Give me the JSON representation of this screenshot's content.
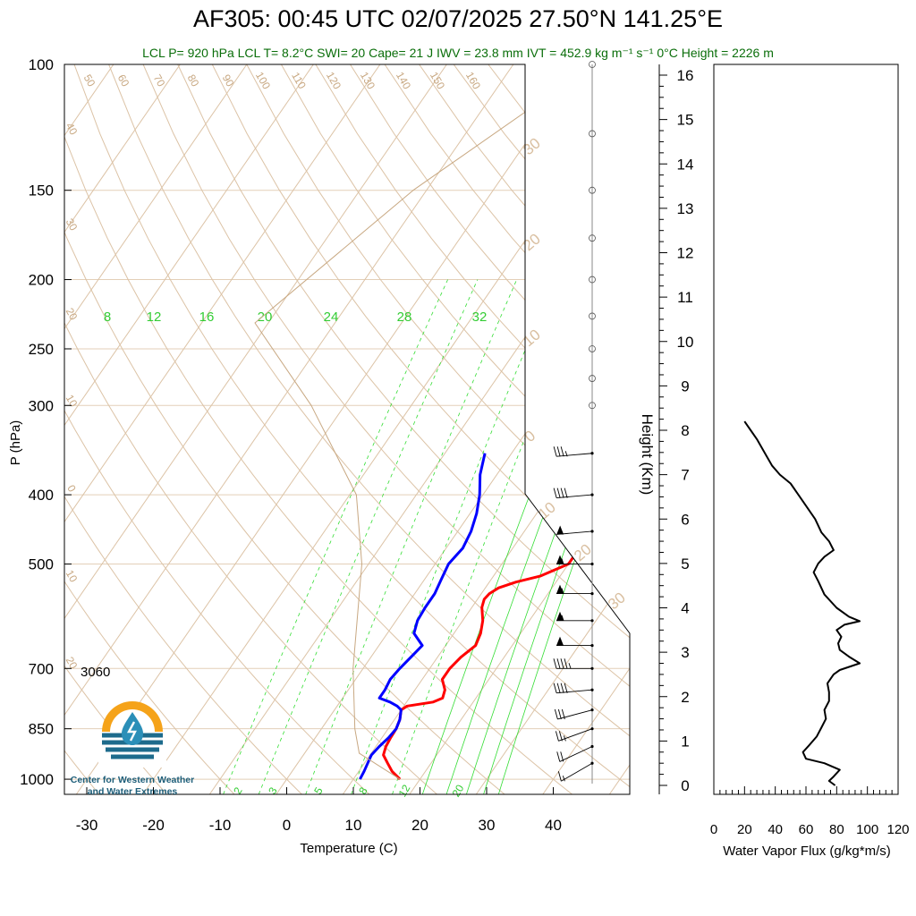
{
  "header": {
    "title": "AF305: 00:45 UTC 02/07/2025  27.50°N 141.25°E",
    "subtitle": "LCL P= 920 hPa  LCL T= 8.2°C  SWI= 20  Cape= 21 J  IWV = 23.8 mm  IVT = 452.9 kg m⁻¹ s⁻¹  0°C Height = 2226 m"
  },
  "annotation_3060": "3060",
  "logo": {
    "line1": "Center for Western Weather",
    "line2": "and Water Extremes"
  },
  "colors": {
    "temperature": "#ff0000",
    "dewpoint": "#0000ff",
    "parcel": "#c8a882",
    "mixing_ratio": "#33dd33",
    "dry_adiabat": "#c8a882",
    "subtitle": "#0a6e0a"
  },
  "chart_data": [
    {
      "type": "line",
      "chart": "skew-T log-P sounding",
      "xlabel": "Temperature (C)",
      "ylabel": "P (hPa)",
      "xticks": [
        -30,
        -20,
        -10,
        0,
        10,
        20,
        30,
        40
      ],
      "yticks": [
        100,
        150,
        200,
        250,
        300,
        400,
        500,
        700,
        850,
        1000
      ],
      "xlim": [
        -34,
        48
      ],
      "ylim": [
        1050,
        100
      ],
      "mixing_ratio_labels": [
        "8",
        "12",
        "16",
        "20",
        "24",
        "28",
        "32"
      ],
      "mixing_ratio_bottom_labels": [
        "2",
        "3",
        "5",
        "8",
        "12",
        "20"
      ],
      "dry_adiabat_top_labels": [
        "50",
        "60",
        "70",
        "80",
        "90",
        "100",
        "110",
        "120",
        "130",
        "140",
        "150",
        "160"
      ],
      "dry_adiabat_left_labels": [
        "40",
        "30",
        "20",
        "10",
        "0",
        "10",
        "20"
      ],
      "skew_labels": [
        "30",
        "20",
        "10",
        "0",
        "10",
        "20",
        "30"
      ],
      "series": [
        {
          "name": "Temperature",
          "pressure": [
            1000,
            975,
            950,
            925,
            900,
            875,
            850,
            825,
            800,
            790,
            780,
            770,
            750,
            725,
            700,
            675,
            650,
            625,
            600,
            575,
            560,
            550,
            540,
            530,
            520,
            500,
            475,
            450,
            425,
            400,
            375,
            360,
            350
          ],
          "values": [
            17,
            15,
            13.5,
            12,
            11.5,
            11.3,
            11.2,
            10.8,
            10,
            10.5,
            14,
            15,
            14.5,
            13,
            13,
            13.5,
            14.5,
            14,
            13,
            11.5,
            11,
            11.2,
            12,
            14,
            17,
            20,
            20,
            19.5,
            18,
            17,
            15.5,
            14,
            13.5
          ]
        },
        {
          "name": "Dewpoint",
          "pressure": [
            1000,
            975,
            950,
            925,
            900,
            875,
            850,
            825,
            800,
            790,
            780,
            770,
            750,
            725,
            700,
            675,
            650,
            625,
            600,
            575,
            550,
            525,
            500,
            475,
            450,
            425,
            400,
            375,
            350
          ],
          "values": [
            11,
            10.8,
            10.5,
            10.2,
            10.5,
            11,
            11.2,
            10.8,
            10,
            9,
            7.5,
            5.5,
            5.5,
            5.2,
            5.5,
            6,
            6.5,
            4,
            3.2,
            3,
            3,
            2.5,
            2,
            2.5,
            2,
            1,
            -0.5,
            -2.5,
            -4
          ]
        },
        {
          "name": "Parcel",
          "pressure": [
            1000,
            920,
            850,
            700,
            500,
            400,
            300,
            230,
            150,
            100
          ],
          "values": [
            17,
            8.2,
            5,
            -1.5,
            -11,
            -19,
            -35,
            -52,
            -42,
            -28
          ]
        }
      ],
      "wind": [
        {
          "pressure": 350,
          "speed_kt": 35,
          "dir_deg": 265
        },
        {
          "pressure": 400,
          "speed_kt": 40,
          "dir_deg": 265
        },
        {
          "pressure": 450,
          "speed_kt": 50,
          "dir_deg": 265
        },
        {
          "pressure": 500,
          "speed_kt": 55,
          "dir_deg": 270
        },
        {
          "pressure": 550,
          "speed_kt": 55,
          "dir_deg": 270
        },
        {
          "pressure": 600,
          "speed_kt": 55,
          "dir_deg": 270
        },
        {
          "pressure": 650,
          "speed_kt": 50,
          "dir_deg": 270
        },
        {
          "pressure": 700,
          "speed_kt": 45,
          "dir_deg": 270
        },
        {
          "pressure": 750,
          "speed_kt": 40,
          "dir_deg": 265
        },
        {
          "pressure": 800,
          "speed_kt": 30,
          "dir_deg": 255
        },
        {
          "pressure": 850,
          "speed_kt": 25,
          "dir_deg": 250
        },
        {
          "pressure": 900,
          "speed_kt": 20,
          "dir_deg": 245
        },
        {
          "pressure": 950,
          "speed_kt": 15,
          "dir_deg": 240
        }
      ]
    },
    {
      "type": "line",
      "chart": "water vapor flux profile",
      "xlabel": "Water Vapor Flux (g/kg*m/s)",
      "ylabel": "Height (Km)",
      "xticks": [
        0,
        20,
        40,
        60,
        80,
        100,
        120
      ],
      "yticks": [
        0,
        1,
        2,
        3,
        4,
        5,
        6,
        7,
        8,
        9,
        10,
        11,
        12,
        13,
        14,
        15,
        16
      ],
      "xlim": [
        0,
        120
      ],
      "ylim": [
        0,
        16.5
      ],
      "series": [
        {
          "name": "Water Vapor Flux",
          "height_km": [
            0.0,
            0.1,
            0.2,
            0.35,
            0.5,
            0.6,
            0.75,
            0.9,
            1.1,
            1.3,
            1.5,
            1.7,
            1.9,
            2.1,
            2.3,
            2.5,
            2.6,
            2.75,
            2.9,
            3.05,
            3.2,
            3.35,
            3.5,
            3.62,
            3.7,
            3.8,
            4.0,
            4.3,
            4.6,
            4.8,
            5.0,
            5.15,
            5.3,
            5.5,
            5.7,
            6.0,
            6.4,
            6.8,
            7.0,
            7.2,
            7.5,
            7.8,
            8.0,
            8.2
          ],
          "values": [
            79,
            75,
            78,
            82,
            72,
            60,
            58,
            62,
            67,
            70,
            73,
            72,
            75,
            75,
            74,
            78,
            82,
            95,
            88,
            82,
            81,
            83,
            80,
            85,
            95,
            88,
            80,
            72,
            68,
            65,
            68,
            72,
            78,
            75,
            70,
            66,
            58,
            50,
            43,
            38,
            33,
            28,
            24,
            20
          ]
        }
      ]
    }
  ]
}
